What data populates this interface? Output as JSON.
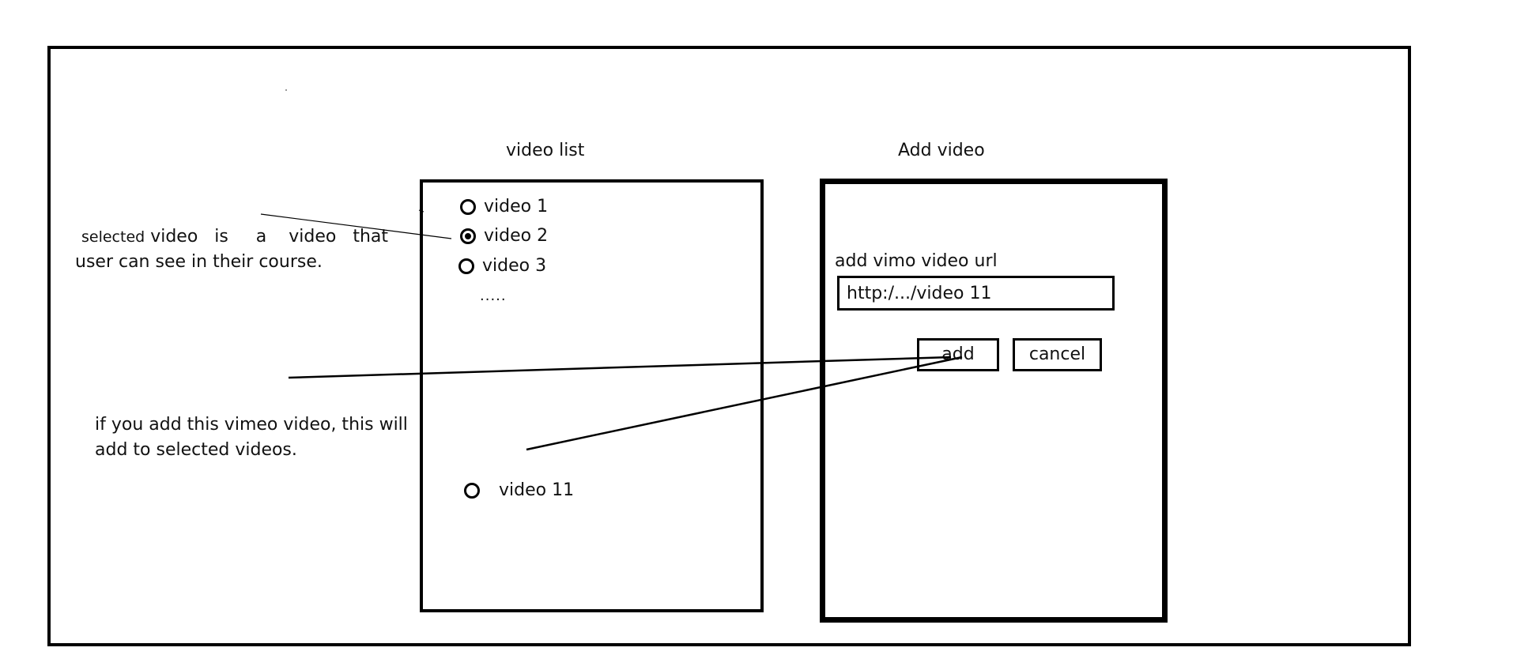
{
  "video_list": {
    "heading": "video  list",
    "items": [
      {
        "label": "video 1",
        "selected": false
      },
      {
        "label": "video 2",
        "selected": true
      },
      {
        "label": "video 3",
        "selected": false
      }
    ],
    "ellipsis": ".....",
    "new_item": {
      "label": "video 11",
      "selected": false
    }
  },
  "add_video": {
    "heading": "Add video",
    "url_label": "add vimo video url",
    "url_value": "http:/.../video 11",
    "add_label": "add",
    "cancel_label": "cancel"
  },
  "notes": {
    "selected_line1_a": "selected",
    "selected_line1_b": " video   is     a    video   that",
    "selected_line2": "user can see in their course.",
    "add_line1": "if you add this vimeo video, this will",
    "add_line2": "add to selected videos."
  }
}
